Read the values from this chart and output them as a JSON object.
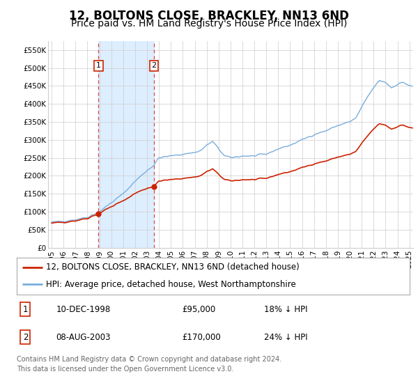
{
  "title": "12, BOLTONS CLOSE, BRACKLEY, NN13 6ND",
  "subtitle": "Price paid vs. HM Land Registry's House Price Index (HPI)",
  "hpi_label": "HPI: Average price, detached house, West Northamptonshire",
  "price_label": "12, BOLTONS CLOSE, BRACKLEY, NN13 6ND (detached house)",
  "footer": "Contains HM Land Registry data © Crown copyright and database right 2024.\nThis data is licensed under the Open Government Licence v3.0.",
  "purchase_1": {
    "date": "10-DEC-1998",
    "price": 95000,
    "hpi_diff": "18% ↓ HPI",
    "year": 1998.92
  },
  "purchase_2": {
    "date": "08-AUG-2003",
    "price": 170000,
    "hpi_diff": "24% ↓ HPI",
    "year": 2003.58
  },
  "ylim": [
    0,
    575000
  ],
  "yticks": [
    0,
    50000,
    100000,
    150000,
    200000,
    250000,
    300000,
    350000,
    400000,
    450000,
    500000,
    550000
  ],
  "yticklabels": [
    "£0",
    "£50K",
    "£100K",
    "£150K",
    "£200K",
    "£250K",
    "£300K",
    "£350K",
    "£400K",
    "£450K",
    "£500K",
    "£550K"
  ],
  "xlim_start": 1994.7,
  "xlim_end": 2025.3,
  "shade_x1": 1998.92,
  "shade_x2": 2003.58,
  "hpi_color": "#7aaddc",
  "price_color": "#cc2200",
  "grid_color": "#cccccc",
  "shade_color": "#ddeeff",
  "box_color": "#cc2200",
  "vline_color": "#dd4444",
  "title_fontsize": 12,
  "subtitle_fontsize": 10,
  "tick_fontsize": 7.5,
  "legend_fontsize": 8.5,
  "table_fontsize": 8.5,
  "footer_fontsize": 7
}
